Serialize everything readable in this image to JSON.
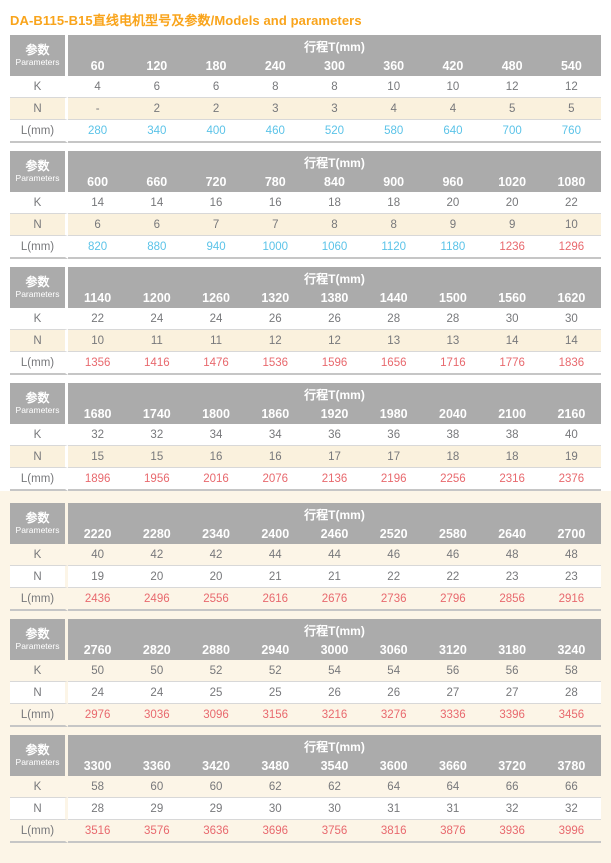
{
  "title": "DA-B115-B15直线电机型号及参数/Models and parameters",
  "header": {
    "param_zh": "参数",
    "param_en": "Parameters",
    "stroke_label": "行程T(mm)"
  },
  "row_labels": {
    "k": "K",
    "n": "N",
    "l": "L(mm)"
  },
  "colors": {
    "title_orange": "#f9a41b",
    "header_gray": "#ababab",
    "stripe_cream": "#faf1dd",
    "page_cream_bottom": "#fcf5e7",
    "value_blue": "#5bc3e8",
    "value_red": "#e8696e",
    "text_gray": "#77787b",
    "row_line": "#d8d8d8",
    "table_bottom_line": "#c6c6c6"
  },
  "tables": [
    {
      "strokes": [
        "60",
        "120",
        "180",
        "240",
        "300",
        "360",
        "420",
        "480",
        "540"
      ],
      "k": [
        "4",
        "6",
        "6",
        "8",
        "8",
        "10",
        "10",
        "12",
        "12"
      ],
      "n": [
        "-",
        "2",
        "2",
        "3",
        "3",
        "4",
        "4",
        "5",
        "5"
      ],
      "l": [
        "280",
        "340",
        "400",
        "460",
        "520",
        "580",
        "640",
        "700",
        "760"
      ],
      "l_colors": [
        "blue",
        "blue",
        "blue",
        "blue",
        "blue",
        "blue",
        "blue",
        "blue",
        "blue"
      ]
    },
    {
      "strokes": [
        "600",
        "660",
        "720",
        "780",
        "840",
        "900",
        "960",
        "1020",
        "1080"
      ],
      "k": [
        "14",
        "14",
        "16",
        "16",
        "18",
        "18",
        "20",
        "20",
        "22"
      ],
      "n": [
        "6",
        "6",
        "7",
        "7",
        "8",
        "8",
        "9",
        "9",
        "10"
      ],
      "l": [
        "820",
        "880",
        "940",
        "1000",
        "1060",
        "1120",
        "1180",
        "1236",
        "1296"
      ],
      "l_colors": [
        "blue",
        "blue",
        "blue",
        "blue",
        "blue",
        "blue",
        "blue",
        "red",
        "red"
      ]
    },
    {
      "strokes": [
        "1140",
        "1200",
        "1260",
        "1320",
        "1380",
        "1440",
        "1500",
        "1560",
        "1620"
      ],
      "k": [
        "22",
        "24",
        "24",
        "26",
        "26",
        "28",
        "28",
        "30",
        "30"
      ],
      "n": [
        "10",
        "11",
        "11",
        "12",
        "12",
        "13",
        "13",
        "14",
        "14"
      ],
      "l": [
        "1356",
        "1416",
        "1476",
        "1536",
        "1596",
        "1656",
        "1716",
        "1776",
        "1836"
      ],
      "l_colors": [
        "red",
        "red",
        "red",
        "red",
        "red",
        "red",
        "red",
        "red",
        "red"
      ]
    },
    {
      "strokes": [
        "1680",
        "1740",
        "1800",
        "1860",
        "1920",
        "1980",
        "2040",
        "2100",
        "2160"
      ],
      "k": [
        "32",
        "32",
        "34",
        "34",
        "36",
        "36",
        "38",
        "38",
        "40"
      ],
      "n": [
        "15",
        "15",
        "16",
        "16",
        "17",
        "17",
        "18",
        "18",
        "19"
      ],
      "l": [
        "1896",
        "1956",
        "2016",
        "2076",
        "2136",
        "2196",
        "2256",
        "2316",
        "2376"
      ],
      "l_colors": [
        "red",
        "red",
        "red",
        "red",
        "red",
        "red",
        "red",
        "red",
        "red"
      ]
    },
    {
      "strokes": [
        "2220",
        "2280",
        "2340",
        "2400",
        "2460",
        "2520",
        "2580",
        "2640",
        "2700"
      ],
      "k": [
        "40",
        "42",
        "42",
        "44",
        "44",
        "46",
        "46",
        "48",
        "48"
      ],
      "n": [
        "19",
        "20",
        "20",
        "21",
        "21",
        "22",
        "22",
        "23",
        "23"
      ],
      "l": [
        "2436",
        "2496",
        "2556",
        "2616",
        "2676",
        "2736",
        "2796",
        "2856",
        "2916"
      ],
      "l_colors": [
        "red",
        "red",
        "red",
        "red",
        "red",
        "red",
        "red",
        "red",
        "red"
      ]
    },
    {
      "strokes": [
        "2760",
        "2820",
        "2880",
        "2940",
        "3000",
        "3060",
        "3120",
        "3180",
        "3240"
      ],
      "k": [
        "50",
        "50",
        "52",
        "52",
        "54",
        "54",
        "56",
        "56",
        "58"
      ],
      "n": [
        "24",
        "24",
        "25",
        "25",
        "26",
        "26",
        "27",
        "27",
        "28"
      ],
      "l": [
        "2976",
        "3036",
        "3096",
        "3156",
        "3216",
        "3276",
        "3336",
        "3396",
        "3456"
      ],
      "l_colors": [
        "red",
        "red",
        "red",
        "red",
        "red",
        "red",
        "red",
        "red",
        "red"
      ]
    },
    {
      "strokes": [
        "3300",
        "3360",
        "3420",
        "3480",
        "3540",
        "3600",
        "3660",
        "3720",
        "3780"
      ],
      "k": [
        "58",
        "60",
        "60",
        "62",
        "62",
        "64",
        "64",
        "66",
        "66"
      ],
      "n": [
        "28",
        "29",
        "29",
        "30",
        "30",
        "31",
        "31",
        "32",
        "32"
      ],
      "l": [
        "3516",
        "3576",
        "3636",
        "3696",
        "3756",
        "3816",
        "3876",
        "3936",
        "3996"
      ],
      "l_colors": [
        "red",
        "red",
        "red",
        "red",
        "red",
        "red",
        "red",
        "red",
        "red"
      ]
    }
  ]
}
